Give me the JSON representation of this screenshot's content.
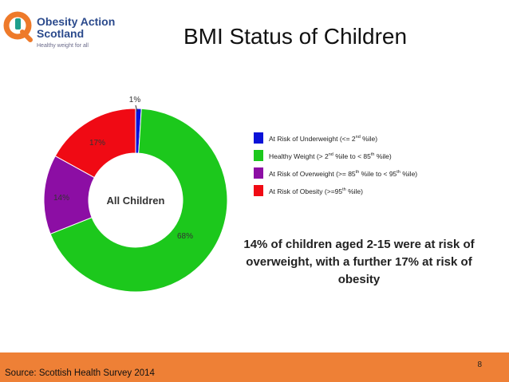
{
  "logo": {
    "line1": "Obesity Action",
    "line2": "Scotland",
    "tagline": "Healthy weight for all"
  },
  "title": "BMI Status of Children",
  "chart_data": {
    "type": "pie",
    "subtype": "donut",
    "center_label": "All Children",
    "labels": [
      "At Risk of Underweight",
      "Healthy Weight",
      "At Risk of Overweight",
      "At Risk of Obesity"
    ],
    "values": [
      1,
      68,
      14,
      17
    ],
    "value_labels": [
      "1%",
      "68%",
      "14%",
      "17%"
    ],
    "colors": [
      "#0a12d8",
      "#1cc81c",
      "#8c0ea4",
      "#f00a14"
    ],
    "legend": [
      {
        "parts": [
          "At Risk of Underweight (<= 2",
          "nd",
          " %ile)"
        ],
        "color": "#0a12d8"
      },
      {
        "parts": [
          "Healthy Weight (> 2",
          "nd",
          " %ile to < 85",
          "th",
          " %ile)"
        ],
        "color": "#1cc81c"
      },
      {
        "parts": [
          "At Risk of Overweight (>= 85",
          "th",
          " %ile to < 95",
          "th",
          " %ile)"
        ],
        "color": "#8c0ea4"
      },
      {
        "parts": [
          "At Risk of Obesity (>=95",
          "th",
          " %ile)"
        ],
        "color": "#f00a14"
      }
    ],
    "legend_position": "right"
  },
  "note": "14% of children aged 2-15 were at risk of overweight, with a further 17% at risk of obesity",
  "footer": {
    "source": "Source: Scottish Health Survey 2014",
    "page": "8"
  }
}
